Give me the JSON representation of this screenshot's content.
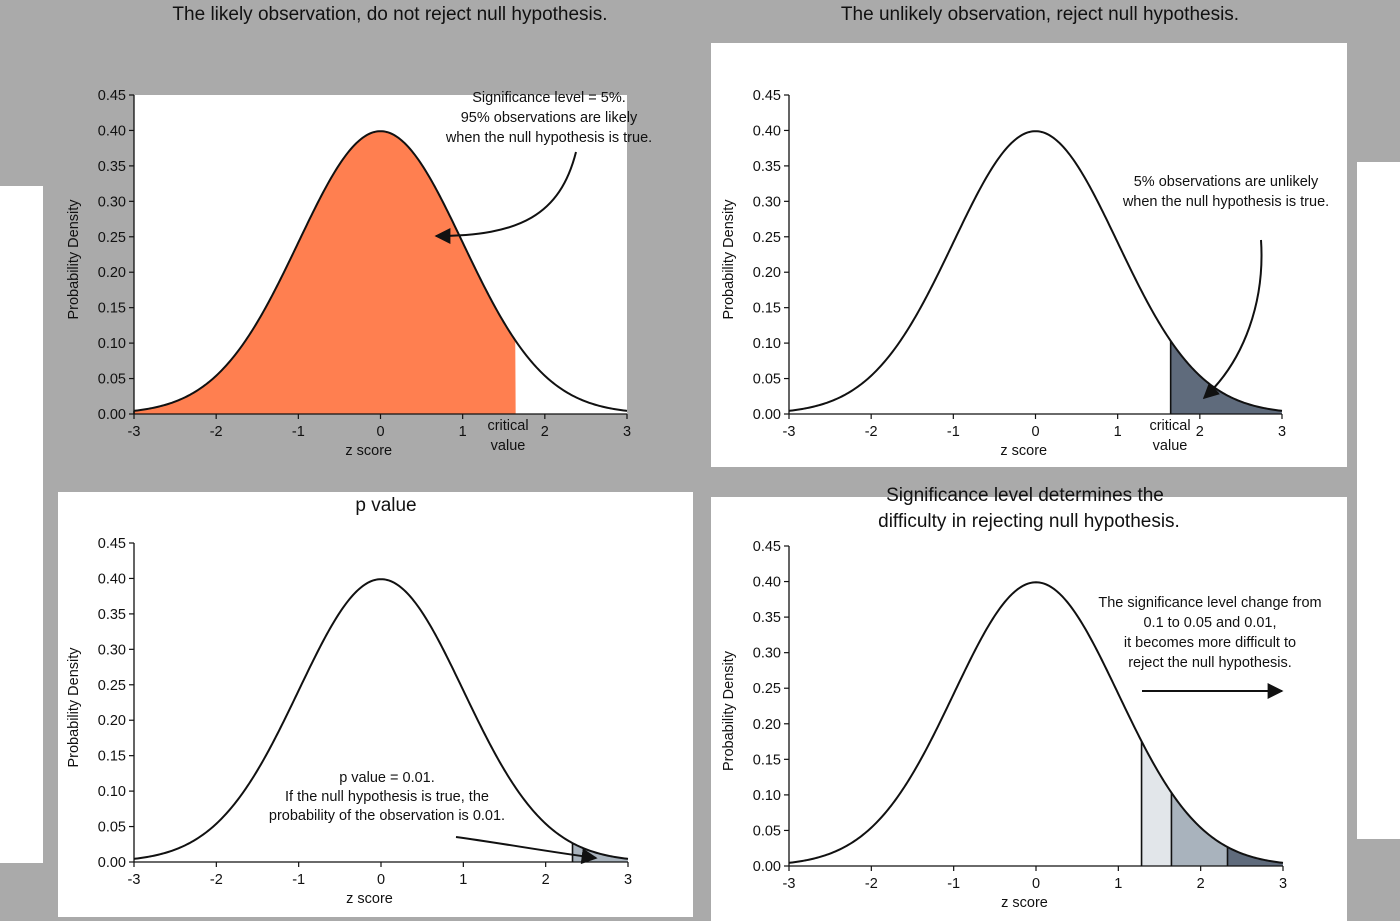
{
  "chart_data": [
    {
      "type": "area",
      "title": "The likely observation, do not reject null hypothesis.",
      "xlabel": "z score",
      "ylabel": "Probability Density",
      "xlim": [
        -3,
        3
      ],
      "ylim": [
        0,
        0.45
      ],
      "xticks": [
        "-3",
        "-2",
        "-1",
        "0",
        "1",
        "2",
        "3"
      ],
      "yticks": [
        "0.00",
        "0.05",
        "0.10",
        "0.15",
        "0.20",
        "0.25",
        "0.30",
        "0.35",
        "0.40",
        "0.45"
      ],
      "shaded_regions": [
        {
          "from": -3,
          "to": 1.645,
          "color": "#ff7f50"
        }
      ],
      "annotations": [
        {
          "lines": [
            "Significance level = 5%.",
            "95% observations are likely",
            "when the null hypothesis is true."
          ]
        },
        {
          "lines": [
            "critical",
            "value"
          ]
        }
      ],
      "grid": false
    },
    {
      "type": "area",
      "title": "The unlikely observation, reject null hypothesis.",
      "xlabel": "z score",
      "ylabel": "Probability Density",
      "xlim": [
        -3,
        3
      ],
      "ylim": [
        0,
        0.45
      ],
      "xticks": [
        "-3",
        "-2",
        "-1",
        "0",
        "1",
        "2",
        "3"
      ],
      "yticks": [
        "0.00",
        "0.05",
        "0.10",
        "0.15",
        "0.20",
        "0.25",
        "0.30",
        "0.35",
        "0.40",
        "0.45"
      ],
      "shaded_regions": [
        {
          "from": 1.645,
          "to": 3,
          "color": "#5f6b7c"
        }
      ],
      "annotations": [
        {
          "lines": [
            "5% observations are unlikely",
            "when the null hypothesis is true."
          ]
        },
        {
          "lines": [
            "critical",
            "value"
          ]
        }
      ],
      "grid": false
    },
    {
      "type": "area",
      "title": "p value",
      "xlabel": "z score",
      "ylabel": "Probability Density",
      "xlim": [
        -3,
        3
      ],
      "ylim": [
        0,
        0.45
      ],
      "xticks": [
        "-3",
        "-2",
        "-1",
        "0",
        "1",
        "2",
        "3"
      ],
      "yticks": [
        "0.00",
        "0.05",
        "0.10",
        "0.15",
        "0.20",
        "0.25",
        "0.30",
        "0.35",
        "0.40",
        "0.45"
      ],
      "shaded_regions": [
        {
          "from": 2.326,
          "to": 3,
          "color": "#a9b3bd"
        }
      ],
      "annotations": [
        {
          "lines": [
            "p value = 0.01.",
            "If the null hypothesis is true, the",
            "probability of the observation is 0.01."
          ]
        }
      ],
      "grid": false
    },
    {
      "type": "area",
      "title": "Significance level determines the difficulty in rejecting null hypothesis.",
      "title_lines": [
        "Significance level determines the",
        "difficulty in rejecting null hypothesis."
      ],
      "xlabel": "z score",
      "ylabel": "Probability Density",
      "xlim": [
        -3,
        3
      ],
      "ylim": [
        0,
        0.45
      ],
      "xticks": [
        "-3",
        "-2",
        "-1",
        "0",
        "1",
        "2",
        "3"
      ],
      "yticks": [
        "0.00",
        "0.05",
        "0.10",
        "0.15",
        "0.20",
        "0.25",
        "0.30",
        "0.35",
        "0.40",
        "0.45"
      ],
      "shaded_regions": [
        {
          "from": 1.282,
          "to": 1.645,
          "color": "#e2e6ea",
          "significance": 0.1
        },
        {
          "from": 1.645,
          "to": 2.326,
          "color": "#a9b3bd",
          "significance": 0.05
        },
        {
          "from": 2.326,
          "to": 3,
          "color": "#5f6b7c",
          "significance": 0.01
        }
      ],
      "annotations": [
        {
          "lines": [
            "The significance level change from",
            "0.1 to 0.05 and 0.01,",
            "it becomes more difficult to",
            "reject the null hypothesis."
          ]
        }
      ],
      "grid": false
    }
  ]
}
